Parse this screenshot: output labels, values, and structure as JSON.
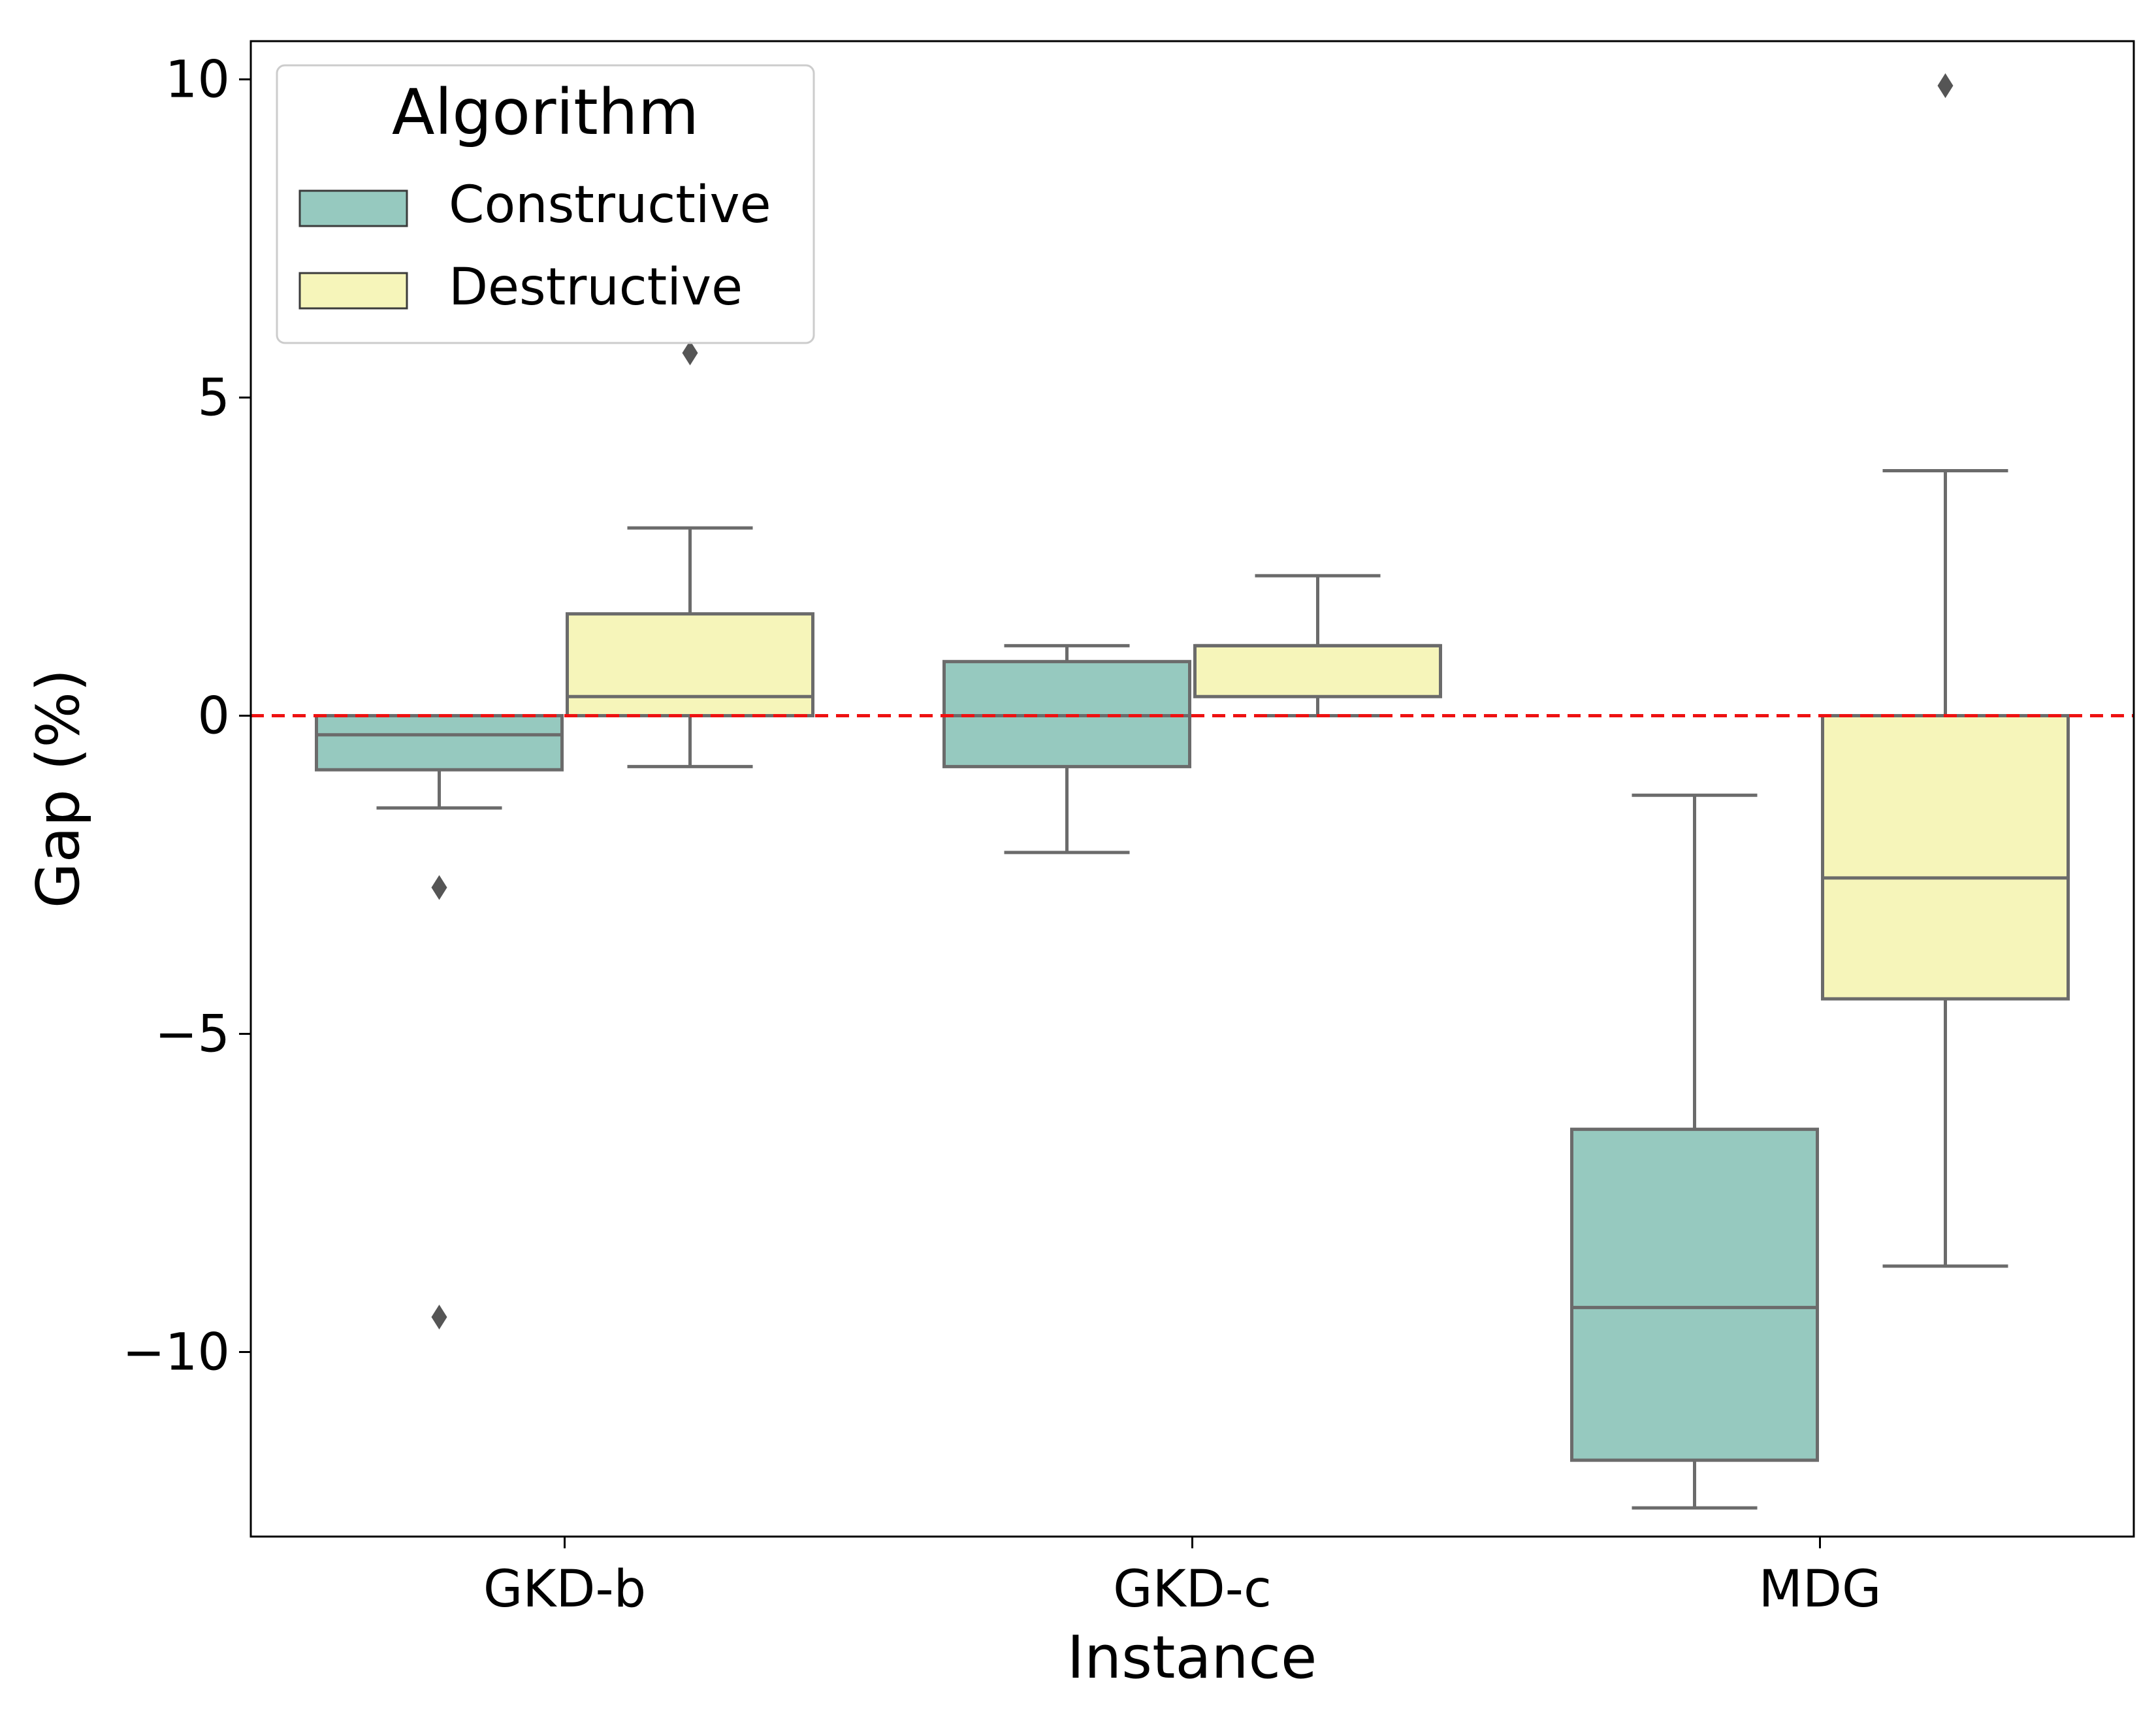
{
  "chart_data": {
    "type": "boxplot",
    "xlabel": "Instance",
    "ylabel": "Gap (%)",
    "ylim": [
      -12.9,
      10.6
    ],
    "yticks": [
      10,
      5,
      0,
      -5,
      -10
    ],
    "ytick_labels": [
      "10",
      "5",
      "0",
      "−5",
      "−10"
    ],
    "categories": [
      "GKD-b",
      "GKD-c",
      "MDG"
    ],
    "reference_line": {
      "y": 0,
      "color": "#ee1111",
      "style": "dashed"
    },
    "legend": {
      "title": "Algorithm",
      "position": "top-left",
      "entries": [
        "Constructive",
        "Destructive"
      ]
    },
    "series": [
      {
        "name": "Constructive",
        "color": "#96c9bf",
        "boxes": [
          {
            "category": "GKD-b",
            "whisker_low": -1.45,
            "q1": -0.85,
            "median": -0.3,
            "q3": 0.0,
            "whisker_high": 0.0,
            "outliers": [
              -2.7,
              -9.45
            ]
          },
          {
            "category": "GKD-c",
            "whisker_low": -2.15,
            "q1": -0.8,
            "median": 0.0,
            "q3": 0.85,
            "whisker_high": 1.1,
            "outliers": []
          },
          {
            "category": "MDG",
            "whisker_low": -12.45,
            "q1": -11.7,
            "median": -9.3,
            "q3": -6.5,
            "whisker_high": -1.25,
            "outliers": []
          }
        ]
      },
      {
        "name": "Destructive",
        "color": "#f6f5ba",
        "boxes": [
          {
            "category": "GKD-b",
            "whisker_low": -0.8,
            "q1": 0.0,
            "median": 0.3,
            "q3": 1.6,
            "whisker_high": 2.95,
            "outliers": [
              5.7
            ]
          },
          {
            "category": "GKD-c",
            "whisker_low": 0.0,
            "q1": 0.3,
            "median": 1.1,
            "q3": 1.1,
            "whisker_high": 2.2,
            "outliers": []
          },
          {
            "category": "MDG",
            "whisker_low": -8.65,
            "q1": -4.45,
            "median": -2.55,
            "q3": 0.0,
            "whisker_high": 3.85,
            "outliers": [
              9.9
            ]
          }
        ]
      }
    ]
  }
}
